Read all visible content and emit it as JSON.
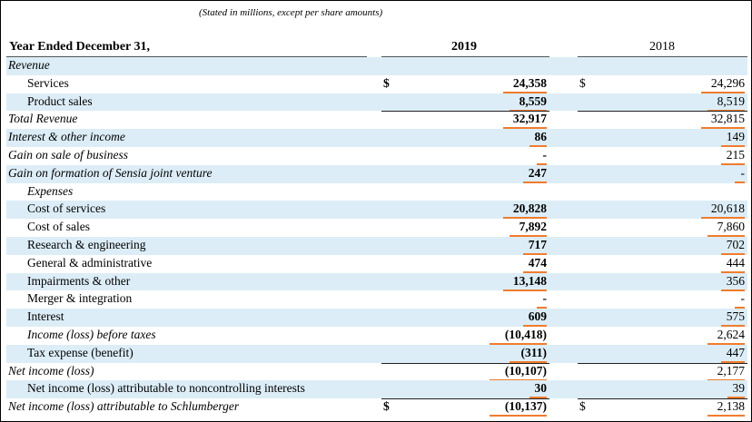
{
  "note": "(Stated in millions, except per share amounts)",
  "header": {
    "title": "Year Ended December 31,",
    "year1": "2019",
    "year2": "2018"
  },
  "rows": [
    {
      "label": "Revenue",
      "indent": 0,
      "italic": true,
      "shade": true
    },
    {
      "label": "Services",
      "indent": 1,
      "italic": false,
      "shade": false,
      "cur1": "$",
      "v1": "24,358",
      "cur2": "$",
      "v2": "24,296"
    },
    {
      "label": "Product sales",
      "indent": 1,
      "italic": false,
      "shade": true,
      "v1": "8,559",
      "v2": "8,519"
    },
    {
      "label": "Total Revenue",
      "indent": 0,
      "italic": true,
      "shade": false,
      "v1": "32,917",
      "v2": "32,815"
    },
    {
      "label": "Interest & other income",
      "indent": 0,
      "italic": true,
      "shade": true,
      "v1": "86",
      "v2": "149"
    },
    {
      "label": "Gain on sale of business",
      "indent": 0,
      "italic": true,
      "shade": false,
      "v1": "-",
      "v2": "215"
    },
    {
      "label": "Gain on formation of Sensia joint venture",
      "indent": 0,
      "italic": true,
      "shade": true,
      "v1": "247",
      "v2": "-"
    },
    {
      "label": "Expenses",
      "indent": 1,
      "italic": true,
      "shade": false
    },
    {
      "label": "Cost of services",
      "indent": 1,
      "italic": false,
      "shade": true,
      "v1": "20,828",
      "v2": "20,618"
    },
    {
      "label": "Cost of sales",
      "indent": 1,
      "italic": false,
      "shade": false,
      "v1": "7,892",
      "v2": "7,860"
    },
    {
      "label": "Research & engineering",
      "indent": 1,
      "italic": false,
      "shade": true,
      "v1": "717",
      "v2": "702"
    },
    {
      "label": "General & administrative",
      "indent": 1,
      "italic": false,
      "shade": false,
      "v1": "474",
      "v2": "444"
    },
    {
      "label": "Impairments & other",
      "indent": 1,
      "italic": false,
      "shade": true,
      "v1": "13,148",
      "v2": "356"
    },
    {
      "label": "Merger & integration",
      "indent": 1,
      "italic": false,
      "shade": false,
      "v1": "-",
      "v2": "-"
    },
    {
      "label": "Interest",
      "indent": 1,
      "italic": false,
      "shade": true,
      "v1": "609",
      "v2": "575"
    },
    {
      "label": "Income (loss) before taxes",
      "indent": 1,
      "italic": true,
      "shade": false,
      "v1": "(10,418)",
      "v2": "2,624"
    },
    {
      "label": "Tax expense (benefit)",
      "indent": 1,
      "italic": false,
      "shade": true,
      "v1": "(311)",
      "v2": "447"
    },
    {
      "label": "Net income (loss)",
      "indent": 0,
      "italic": true,
      "shade": false,
      "v1": "(10,107)",
      "v2": "2,177"
    },
    {
      "label": "Net income (loss) attributable to noncontrolling interests",
      "indent": 1,
      "italic": false,
      "shade": true,
      "v1": "30",
      "v2": "39"
    },
    {
      "label": "Net income (loss) attributable to Schlumberger",
      "indent": 0,
      "italic": true,
      "shade": false,
      "cur1": "$",
      "v1": "(10,137)",
      "cur2": "$",
      "v2": "2,138"
    }
  ],
  "colors": {
    "shade": "#dcedf7",
    "underline": "#f07c2e"
  }
}
